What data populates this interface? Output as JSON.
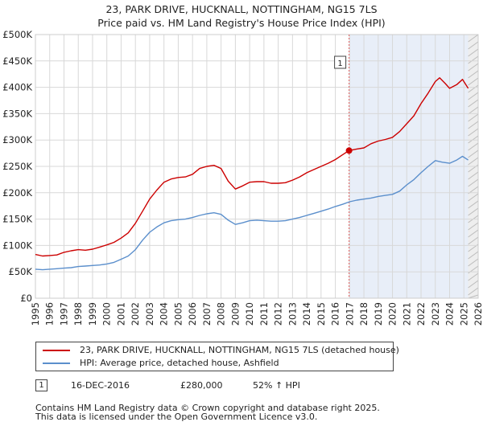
{
  "chart_data": {
    "type": "line",
    "title": "23, PARK DRIVE, HUCKNALL, NOTTINGHAM, NG15 7LS",
    "subtitle": "Price paid vs. HM Land Registry's House Price Index (HPI)",
    "xlim": [
      1995,
      2026
    ],
    "ylim": [
      0,
      500000
    ],
    "x_ticks": [
      "1995",
      "1996",
      "1997",
      "1998",
      "1999",
      "2000",
      "2001",
      "2002",
      "2003",
      "2004",
      "2005",
      "2006",
      "2007",
      "2008",
      "2009",
      "2010",
      "2011",
      "2012",
      "2013",
      "2014",
      "2015",
      "2016",
      "2017",
      "2018",
      "2019",
      "2020",
      "2021",
      "2022",
      "2023",
      "2024",
      "2025",
      "2026"
    ],
    "y_ticks": [
      {
        "value": 0,
        "label": "£0"
      },
      {
        "value": 50000,
        "label": "£50K"
      },
      {
        "value": 100000,
        "label": "£100K"
      },
      {
        "value": 150000,
        "label": "£150K"
      },
      {
        "value": 200000,
        "label": "£200K"
      },
      {
        "value": 250000,
        "label": "£250K"
      },
      {
        "value": 300000,
        "label": "£300K"
      },
      {
        "value": 350000,
        "label": "£350K"
      },
      {
        "value": 400000,
        "label": "£400K"
      },
      {
        "value": 450000,
        "label": "£450K"
      },
      {
        "value": 500000,
        "label": "£500K"
      }
    ],
    "grid": true,
    "series": [
      {
        "name": "23, PARK DRIVE, HUCKNALL, NOTTINGHAM, NG15 7LS (detached house)",
        "color": "#cc0000",
        "x": [
          1995.0,
          1995.5,
          1996.0,
          1996.5,
          1997.0,
          1997.5,
          1998.0,
          1998.5,
          1999.0,
          1999.5,
          2000.0,
          2000.5,
          2001.0,
          2001.5,
          2002.0,
          2002.5,
          2003.0,
          2003.5,
          2004.0,
          2004.5,
          2005.0,
          2005.5,
          2006.0,
          2006.5,
          2007.0,
          2007.5,
          2008.0,
          2008.5,
          2009.0,
          2009.5,
          2010.0,
          2010.5,
          2011.0,
          2011.5,
          2012.0,
          2012.5,
          2013.0,
          2013.5,
          2014.0,
          2014.5,
          2015.0,
          2015.5,
          2016.0,
          2016.5,
          2016.96,
          2017.5,
          2018.0,
          2018.5,
          2019.0,
          2019.5,
          2020.0,
          2020.5,
          2021.0,
          2021.5,
          2022.0,
          2022.5,
          2023.0,
          2023.3,
          2023.7,
          2024.0,
          2024.5,
          2024.9,
          2025.3
        ],
        "values": [
          83000,
          80000,
          81000,
          82000,
          87000,
          90000,
          92000,
          91000,
          93000,
          97000,
          101000,
          106000,
          114000,
          124000,
          142000,
          165000,
          188000,
          205000,
          220000,
          226000,
          229000,
          230000,
          235000,
          246000,
          250000,
          252000,
          246000,
          222000,
          207000,
          213000,
          220000,
          221000,
          221000,
          218000,
          218000,
          219000,
          224000,
          230000,
          238000,
          244000,
          250000,
          256000,
          263000,
          272000,
          280000,
          283000,
          285000,
          293000,
          298000,
          301000,
          305000,
          316000,
          331000,
          346000,
          369000,
          389000,
          411000,
          418000,
          407000,
          398000,
          405000,
          415000,
          398000
        ]
      },
      {
        "name": "HPI: Average price, detached house, Ashfield",
        "color": "#5b8fcc",
        "x": [
          1995.0,
          1995.5,
          1996.0,
          1996.5,
          1997.0,
          1997.5,
          1998.0,
          1998.5,
          1999.0,
          1999.5,
          2000.0,
          2000.5,
          2001.0,
          2001.5,
          2002.0,
          2002.5,
          2003.0,
          2003.5,
          2004.0,
          2004.5,
          2005.0,
          2005.5,
          2006.0,
          2006.5,
          2007.0,
          2007.5,
          2008.0,
          2008.5,
          2009.0,
          2009.5,
          2010.0,
          2010.5,
          2011.0,
          2011.5,
          2012.0,
          2012.5,
          2013.0,
          2013.5,
          2014.0,
          2014.5,
          2015.0,
          2015.5,
          2016.0,
          2016.5,
          2017.0,
          2017.5,
          2018.0,
          2018.5,
          2019.0,
          2019.5,
          2020.0,
          2020.5,
          2021.0,
          2021.5,
          2022.0,
          2022.5,
          2023.0,
          2023.5,
          2024.0,
          2024.5,
          2024.9,
          2025.3
        ],
        "values": [
          55000,
          54000,
          55000,
          56000,
          57000,
          58000,
          60000,
          61000,
          62000,
          63000,
          65000,
          68000,
          74000,
          80000,
          92000,
          110000,
          125000,
          135000,
          143000,
          147000,
          149000,
          150000,
          153000,
          157000,
          160000,
          162000,
          159000,
          148000,
          140000,
          143000,
          147000,
          148000,
          147000,
          146000,
          146000,
          147000,
          150000,
          153000,
          157000,
          161000,
          165000,
          169000,
          174000,
          178000,
          183000,
          186000,
          188000,
          190000,
          193000,
          195000,
          197000,
          203000,
          215000,
          225000,
          238000,
          250000,
          261000,
          258000,
          256000,
          262000,
          269000,
          262000
        ]
      }
    ],
    "annotations": [
      {
        "label": "1",
        "x": 2016.96,
        "value": 280000
      }
    ]
  },
  "legend": {
    "property_label": "23, PARK DRIVE, HUCKNALL, NOTTINGHAM, NG15 7LS (detached house)",
    "hpi_label": "HPI: Average price, detached house, Ashfield"
  },
  "sale": {
    "number": "1",
    "date": "16-DEC-2016",
    "price": "£280,000",
    "hpi_change": "52% ↑ HPI"
  },
  "footer": {
    "line1": "Contains HM Land Registry data © Crown copyright and database right 2025.",
    "line2": "This data is licensed under the Open Government Licence v3.0."
  },
  "colors": {
    "property": "#cc0000",
    "hpi": "#5b8fcc",
    "shade": "#e8eef8",
    "grid": "#d8d8d8",
    "vline": "#e06060"
  }
}
